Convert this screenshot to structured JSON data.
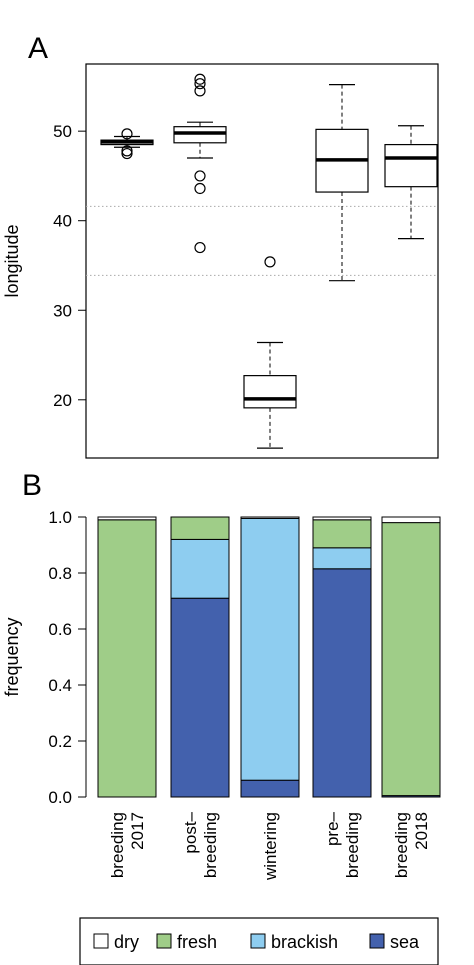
{
  "chart_data": [
    {
      "type": "boxplot",
      "panel_label": "A",
      "ylabel": "longitude",
      "ylim": [
        13.5,
        57.5
      ],
      "yticks": [
        20,
        30,
        40,
        50
      ],
      "reference_lines": [
        41.6,
        33.9
      ],
      "boxes": [
        {
          "q1": 48.5,
          "median": 48.8,
          "q3": 49.0,
          "whisker_low": 48.2,
          "whisker_high": 49.4,
          "outliers": [
            47.5,
            47.8,
            49.7
          ]
        },
        {
          "q1": 48.7,
          "median": 49.8,
          "q3": 50.5,
          "whisker_low": 47.0,
          "whisker_high": 51.0,
          "outliers": [
            55.8,
            55.3,
            54.5,
            45.0,
            43.6,
            37.0
          ]
        },
        {
          "q1": 19.1,
          "median": 20.1,
          "q3": 22.7,
          "whisker_low": 14.6,
          "whisker_high": 26.4,
          "outliers": [
            35.4
          ]
        },
        {
          "q1": 43.2,
          "median": 46.8,
          "q3": 50.2,
          "whisker_low": 33.3,
          "whisker_high": 55.2,
          "outliers": []
        },
        {
          "q1": 43.8,
          "median": 47.0,
          "q3": 48.5,
          "whisker_low": 38.0,
          "whisker_high": 50.6,
          "outliers": []
        }
      ]
    },
    {
      "type": "stacked-bar",
      "panel_label": "B",
      "ylabel": "frequency",
      "ylim": [
        0,
        1
      ],
      "yticks": [
        "0.0",
        "0.2",
        "0.4",
        "0.6",
        "0.8",
        "1.0"
      ],
      "categories": [
        [
          "breeding",
          "2017"
        ],
        [
          "post–",
          "breeding"
        ],
        [
          "wintering"
        ],
        [
          "pre–",
          "breeding"
        ],
        [
          "breeding",
          "2018"
        ]
      ],
      "series": [
        {
          "name": "sea",
          "color": "#4361ad",
          "values": [
            0.0,
            0.71,
            0.06,
            0.815,
            0.005
          ]
        },
        {
          "name": "brackish",
          "color": "#8ecdf0",
          "values": [
            0.0,
            0.21,
            0.935,
            0.075,
            0.0
          ]
        },
        {
          "name": "fresh",
          "color": "#9fcd88",
          "values": [
            0.99,
            0.08,
            0.0,
            0.1,
            0.975
          ]
        },
        {
          "name": "dry",
          "color": "#ffffff",
          "values": [
            0.01,
            0.0,
            0.005,
            0.01,
            0.02
          ]
        }
      ],
      "legend": [
        "dry",
        "fresh",
        "brackish",
        "sea"
      ]
    }
  ]
}
